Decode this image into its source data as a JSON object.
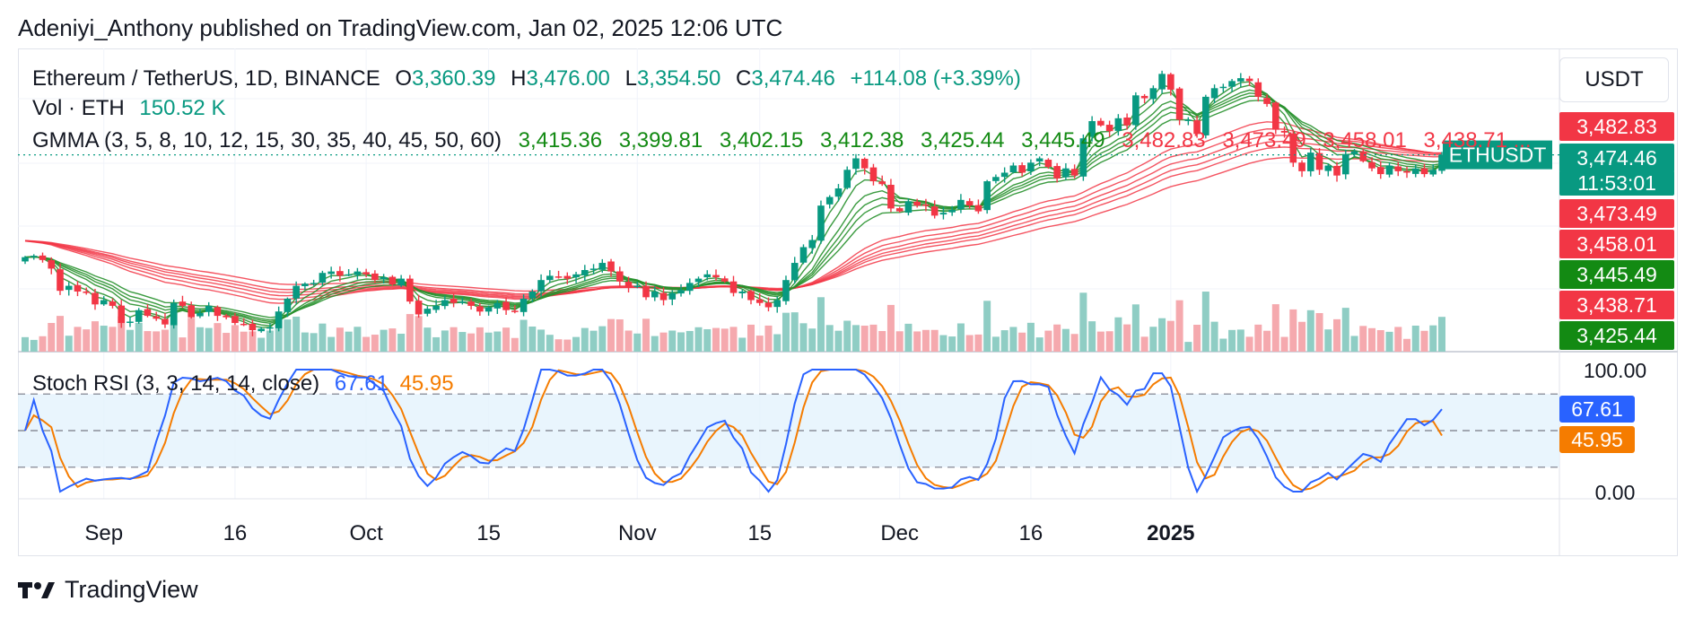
{
  "publish_line": "Adeniyi_Anthony published on TradingView.com, Jan 02, 2025 12:06 UTC",
  "brand": {
    "name": "TradingView",
    "icon": "tradingview-logo-icon"
  },
  "currency_button": "USDT",
  "symbol_legend": {
    "title": "Ethereum / TetherUS, 1D, BINANCE",
    "open_label": "O",
    "open": "3,360.39",
    "high_label": "H",
    "high": "3,476.00",
    "low_label": "L",
    "low": "3,354.50",
    "close_label": "C",
    "close": "3,474.46",
    "change": "+114.08 (+3.39%)"
  },
  "vol_legend": {
    "label": "Vol · ETH",
    "value": "150.52 K"
  },
  "gmma_legend": {
    "label": "GMMA (3, 5, 8, 10, 12, 15, 30, 35, 40, 45, 50, 60)",
    "short_values": [
      "3,415.36",
      "3,399.81",
      "3,402.15",
      "3,412.38",
      "3,425.44",
      "3,445.49"
    ],
    "long_values": [
      "3,482.83",
      "3,473.49",
      "3,458.01",
      "3,438.71"
    ],
    "ellipsis": "..."
  },
  "rsi_legend": {
    "label": "Stoch RSI (3, 3, 14, 14, close)",
    "k": "67.61",
    "d": "45.95"
  },
  "price_tags": [
    {
      "text": "3,482.83",
      "color": "#f23645"
    },
    {
      "text": "3,474.46",
      "color": "#089981"
    },
    {
      "text": "11:53:01",
      "color": "#089981"
    },
    {
      "text": "3,473.49",
      "color": "#f23645"
    },
    {
      "text": "3,458.01",
      "color": "#f23645"
    },
    {
      "text": "3,445.49",
      "color": "#138a13"
    },
    {
      "text": "3,438.71",
      "color": "#f23645"
    },
    {
      "text": "3,425.44",
      "color": "#138a13"
    }
  ],
  "symbol_tag": "ETHUSDT",
  "rsi_axis": {
    "top": "100.00",
    "bottom": "0.00",
    "k_tag": "67.61",
    "d_tag": "45.95"
  },
  "colors": {
    "up": "#089981",
    "down": "#f23645",
    "vol_up": "#8fcdc4",
    "vol_down": "#f5a9ae",
    "gmma_short": "#26902b",
    "gmma_long": "#f23645",
    "stoch_k": "#2962ff",
    "stoch_d": "#f57c00",
    "rsi_band": "#e3f2fd"
  },
  "chart_data": {
    "type": "candlestick",
    "symbol": "ETHUSDT",
    "interval": "1D",
    "x_tick_labels": [
      "Sep",
      "16",
      "Oct",
      "15",
      "Nov",
      "15",
      "Dec",
      "16",
      "2025"
    ],
    "x_tick_dates": [
      "2024-09-01",
      "2024-09-16",
      "2024-10-01",
      "2024-10-15",
      "2024-11-01",
      "2024-11-15",
      "2024-12-01",
      "2024-12-16",
      "2025-01-01"
    ],
    "date_range": [
      "2024-08-23",
      "2025-01-02"
    ],
    "ylim": [
      2100,
      4180
    ],
    "grid": true,
    "close_series": [
      2760,
      2770,
      2740,
      2680,
      2525,
      2560,
      2520,
      2510,
      2430,
      2460,
      2420,
      2300,
      2310,
      2390,
      2350,
      2330,
      2290,
      2440,
      2420,
      2340,
      2370,
      2420,
      2350,
      2340,
      2300,
      2290,
      2250,
      2260,
      2270,
      2380,
      2470,
      2560,
      2575,
      2580,
      2650,
      2660,
      2630,
      2640,
      2660,
      2640,
      2600,
      2620,
      2570,
      2610,
      2450,
      2360,
      2400,
      2420,
      2460,
      2440,
      2450,
      2420,
      2380,
      2410,
      2440,
      2390,
      2380,
      2470,
      2520,
      2600,
      2630,
      2620,
      2610,
      2640,
      2670,
      2680,
      2720,
      2660,
      2590,
      2550,
      2560,
      2480,
      2520,
      2460,
      2510,
      2530,
      2580,
      2610,
      2640,
      2620,
      2590,
      2510,
      2520,
      2460,
      2440,
      2410,
      2460,
      2600,
      2720,
      2830,
      2880,
      3120,
      3180,
      3240,
      3370,
      3450,
      3380,
      3290,
      3270,
      3100,
      3080,
      3150,
      3120,
      3120,
      3050,
      3070,
      3090,
      3160,
      3120,
      3080,
      3290,
      3320,
      3350,
      3400,
      3350,
      3420,
      3450,
      3390,
      3310,
      3380,
      3330,
      3590,
      3710,
      3680,
      3640,
      3730,
      3680,
      3890,
      3870,
      3940,
      4040,
      3930,
      3720,
      3720,
      3620,
      3880,
      3940,
      3950,
      3990,
      4010,
      3990,
      3880,
      3830,
      3650,
      3630,
      3420,
      3360,
      3490,
      3370,
      3400,
      3330,
      3480,
      3500,
      3430,
      3380,
      3340,
      3400,
      3360,
      3350,
      3380,
      3340,
      3370,
      3474.46
    ],
    "stoch_rsi": {
      "range": [
        0,
        100
      ],
      "levels": [
        80,
        20
      ],
      "k_last": 67.61,
      "d_last": 45.95
    }
  }
}
